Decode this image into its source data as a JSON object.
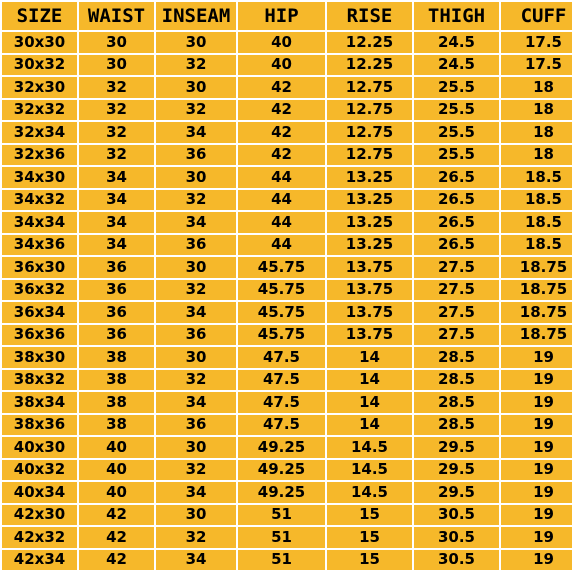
{
  "table": {
    "headers": [
      "SIZE",
      "WAIST",
      "INSEAM",
      "HIP",
      "RISE",
      "THIGH",
      "CUFF"
    ],
    "rows": [
      [
        "30x30",
        "30",
        "30",
        "40",
        "12.25",
        "24.5",
        "17.5"
      ],
      [
        "30x32",
        "30",
        "32",
        "40",
        "12.25",
        "24.5",
        "17.5"
      ],
      [
        "32x30",
        "32",
        "30",
        "42",
        "12.75",
        "25.5",
        "18"
      ],
      [
        "32x32",
        "32",
        "32",
        "42",
        "12.75",
        "25.5",
        "18"
      ],
      [
        "32x34",
        "32",
        "34",
        "42",
        "12.75",
        "25.5",
        "18"
      ],
      [
        "32x36",
        "32",
        "36",
        "42",
        "12.75",
        "25.5",
        "18"
      ],
      [
        "34x30",
        "34",
        "30",
        "44",
        "13.25",
        "26.5",
        "18.5"
      ],
      [
        "34x32",
        "34",
        "32",
        "44",
        "13.25",
        "26.5",
        "18.5"
      ],
      [
        "34x34",
        "34",
        "34",
        "44",
        "13.25",
        "26.5",
        "18.5"
      ],
      [
        "34x36",
        "34",
        "36",
        "44",
        "13.25",
        "26.5",
        "18.5"
      ],
      [
        "36x30",
        "36",
        "30",
        "45.75",
        "13.75",
        "27.5",
        "18.75"
      ],
      [
        "36x32",
        "36",
        "32",
        "45.75",
        "13.75",
        "27.5",
        "18.75"
      ],
      [
        "36x34",
        "36",
        "34",
        "45.75",
        "13.75",
        "27.5",
        "18.75"
      ],
      [
        "36x36",
        "36",
        "36",
        "45.75",
        "13.75",
        "27.5",
        "18.75"
      ],
      [
        "38x30",
        "38",
        "30",
        "47.5",
        "14",
        "28.5",
        "19"
      ],
      [
        "38x32",
        "38",
        "32",
        "47.5",
        "14",
        "28.5",
        "19"
      ],
      [
        "38x34",
        "38",
        "34",
        "47.5",
        "14",
        "28.5",
        "19"
      ],
      [
        "38x36",
        "38",
        "36",
        "47.5",
        "14",
        "28.5",
        "19"
      ],
      [
        "40x30",
        "40",
        "30",
        "49.25",
        "14.5",
        "29.5",
        "19"
      ],
      [
        "40x32",
        "40",
        "32",
        "49.25",
        "14.5",
        "29.5",
        "19"
      ],
      [
        "40x34",
        "40",
        "34",
        "49.25",
        "14.5",
        "29.5",
        "19"
      ],
      [
        "42x30",
        "42",
        "30",
        "51",
        "15",
        "30.5",
        "19"
      ],
      [
        "42x32",
        "42",
        "32",
        "51",
        "15",
        "30.5",
        "19"
      ],
      [
        "42x34",
        "42",
        "34",
        "51",
        "15",
        "30.5",
        "19"
      ]
    ]
  },
  "colors": {
    "cell_background": "#f6b82a",
    "grid_lines": "#ffffff",
    "text": "#000000"
  }
}
